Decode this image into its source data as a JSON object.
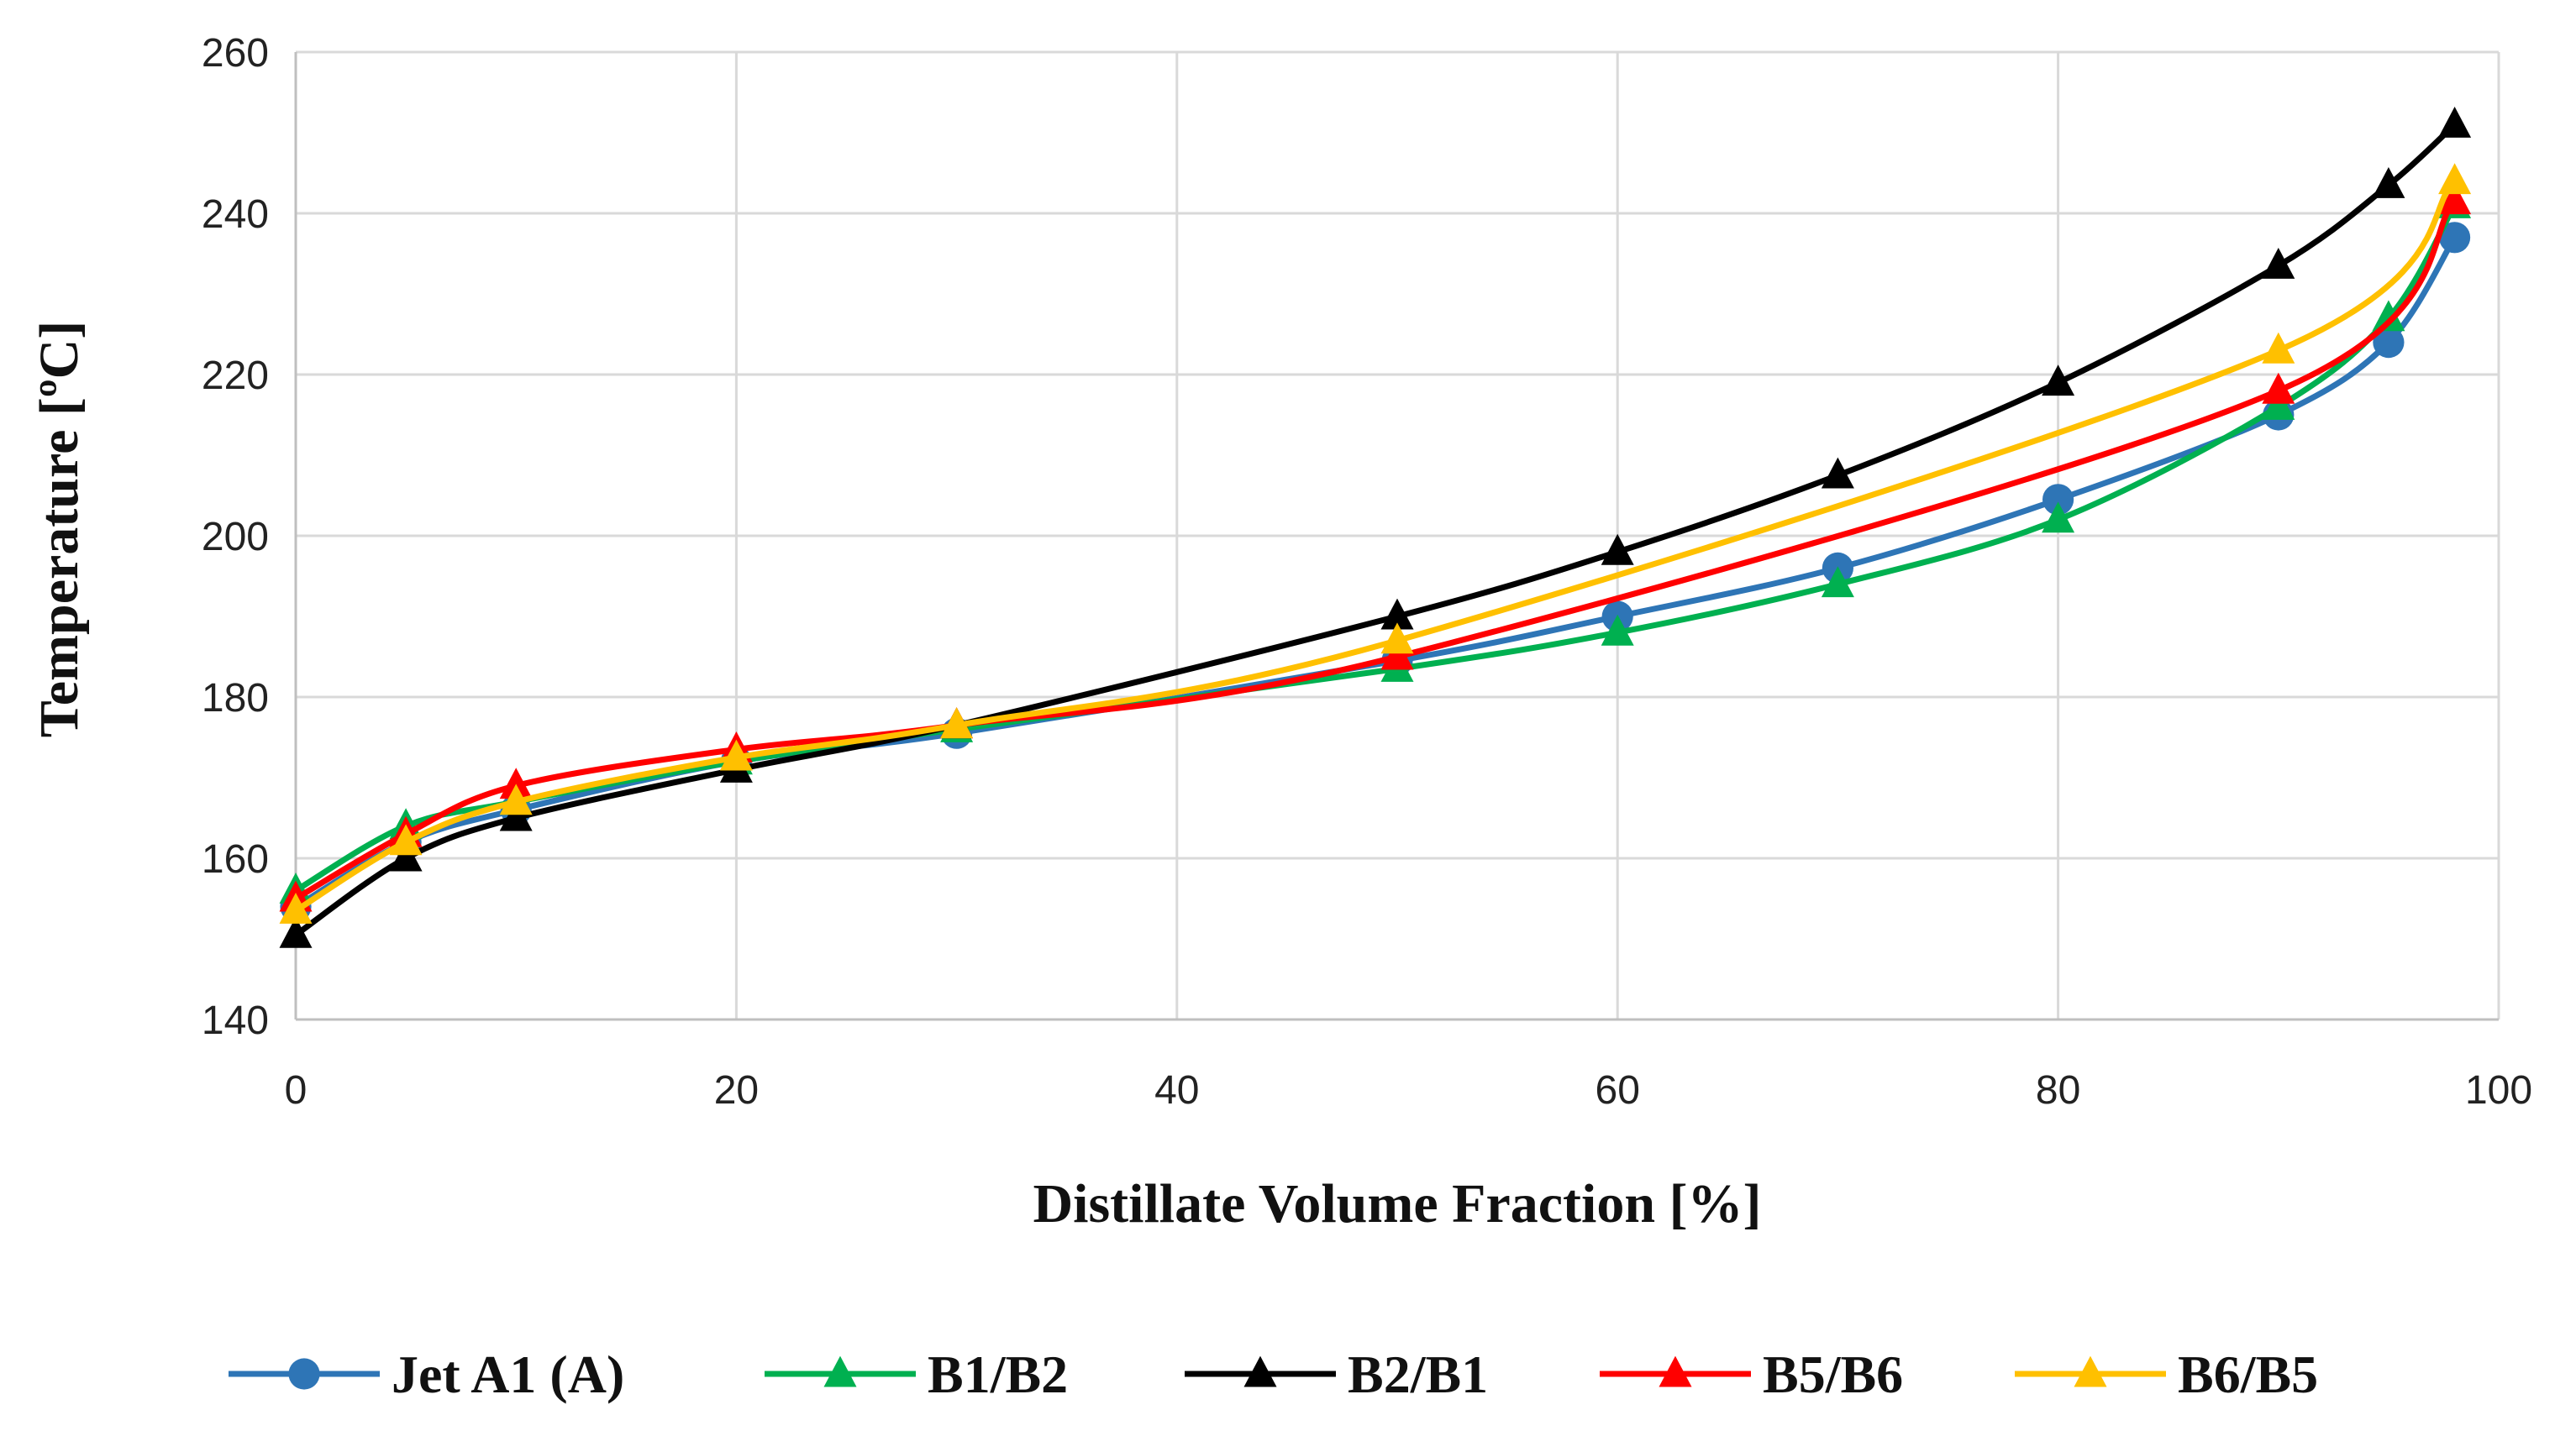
{
  "chart_data": {
    "type": "line",
    "title": "",
    "xlabel": "Distillate Volume Fraction [%]",
    "ylabel": "Temperature [ºC]",
    "xlim": [
      0,
      100
    ],
    "ylim": [
      140,
      260
    ],
    "xticks": [
      0,
      20,
      40,
      60,
      80,
      100
    ],
    "yticks": [
      140,
      160,
      180,
      200,
      220,
      240,
      260
    ],
    "grid": true,
    "legend_position": "bottom",
    "series": [
      {
        "name": "Jet A1 (A)",
        "color": "#2E75B6",
        "marker": "circle",
        "x": [
          0,
          5,
          10,
          20,
          30,
          50,
          60,
          70,
          80,
          90,
          95,
          98
        ],
        "y": [
          154,
          162,
          166,
          172,
          175.5,
          184.5,
          190,
          196,
          204.5,
          215,
          224,
          237
        ]
      },
      {
        "name": "B1/B2",
        "color": "#00B050",
        "marker": "triangle",
        "x": [
          0,
          5,
          10,
          20,
          30,
          50,
          60,
          70,
          80,
          90,
          95,
          98
        ],
        "y": [
          156,
          164,
          167,
          172,
          176,
          183.5,
          188,
          194,
          202,
          216,
          227,
          241
        ]
      },
      {
        "name": "B2/B1",
        "color": "#000000",
        "marker": "triangle",
        "x": [
          0,
          5,
          10,
          20,
          30,
          50,
          60,
          70,
          80,
          90,
          95,
          98
        ],
        "y": [
          150.5,
          160,
          165,
          171,
          176.5,
          190,
          198,
          207.5,
          219,
          233.5,
          243.5,
          251
        ]
      },
      {
        "name": "B5/B6",
        "color": "#FF0000",
        "marker": "triangle",
        "x": [
          0,
          5,
          10,
          20,
          30,
          50,
          90,
          98
        ],
        "y": [
          155,
          163,
          169,
          173.5,
          176.5,
          185,
          218,
          241.5
        ]
      },
      {
        "name": "B6/B5",
        "color": "#FFC000",
        "marker": "triangle",
        "x": [
          0,
          5,
          10,
          20,
          30,
          50,
          90,
          98
        ],
        "y": [
          153.5,
          162,
          167,
          172.5,
          176.5,
          187,
          223,
          244
        ]
      }
    ]
  }
}
